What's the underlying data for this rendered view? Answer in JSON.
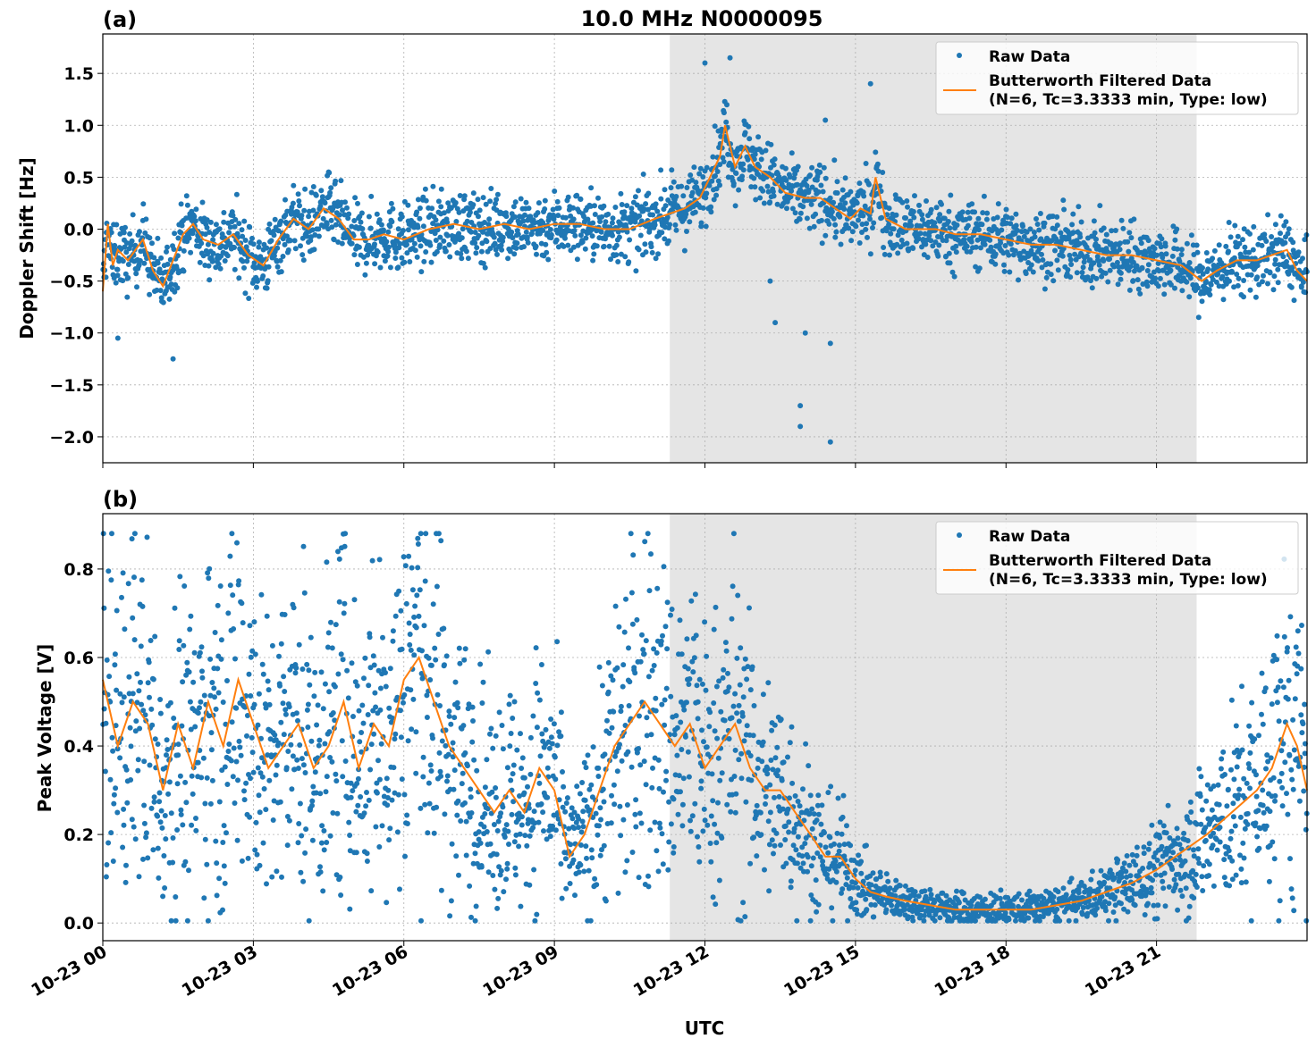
{
  "figure": {
    "title": "10.0 MHz N0000095",
    "xlabel": "UTC",
    "x_tick_labels": [
      "10-23 00",
      "10-23 03",
      "10-23 06",
      "10-23 09",
      "10-23 12",
      "10-23 15",
      "10-23 18",
      "10-23 21"
    ],
    "colors": {
      "raw": "#1f77b4",
      "filtered": "#ff7f0e",
      "shade": "#e5e5e5",
      "grid": "#b0b0b0"
    }
  },
  "legend": {
    "raw_label": "Raw Data",
    "filtered_label_line1": "Butterworth Filtered Data",
    "filtered_label_line2": "(N=6, Tc=3.3333 min, Type: low)"
  },
  "chart_data": [
    {
      "type": "scatter",
      "panel": "(a)",
      "ylabel": "Doppler Shift [Hz]",
      "x_unit": "hours UTC since 10-23 00:00",
      "xlim": [
        0,
        24
      ],
      "ylim": [
        -2.25,
        1.88
      ],
      "yticks": [
        1.5,
        1.0,
        0.5,
        0.0,
        -0.5,
        -1.0,
        -1.5,
        -2.0
      ],
      "ytick_labels": [
        "1.5",
        "1.0",
        "0.5",
        "0.0",
        "−0.5",
        "−1.0",
        "−1.5",
        "−2.0"
      ],
      "shaded_x_range": [
        11.3,
        21.8
      ],
      "grid": true,
      "legend_position": "top-right",
      "series": [
        {
          "name": "Butterworth Filtered Data",
          "x": [
            0,
            0.1,
            0.2,
            0.3,
            0.5,
            0.8,
            1.0,
            1.2,
            1.4,
            1.6,
            1.8,
            2.0,
            2.3,
            2.6,
            2.9,
            3.2,
            3.5,
            3.8,
            4.1,
            4.4,
            4.7,
            5.0,
            5.3,
            5.6,
            6.0,
            6.5,
            7.0,
            7.5,
            8.0,
            8.5,
            9.0,
            9.5,
            10.0,
            10.5,
            11.0,
            11.3,
            11.6,
            11.9,
            12.1,
            12.3,
            12.4,
            12.6,
            12.8,
            13.0,
            13.3,
            13.6,
            14.0,
            14.3,
            14.6,
            14.9,
            15.1,
            15.3,
            15.4,
            15.6,
            15.8,
            16.0,
            16.3,
            16.6,
            17.0,
            17.5,
            18.0,
            18.5,
            19.0,
            19.5,
            20.0,
            20.5,
            21.0,
            21.5,
            21.9,
            22.2,
            22.6,
            23.0,
            23.3,
            23.6,
            23.8,
            24.0
          ],
          "y": [
            -0.6,
            0.05,
            -0.35,
            -0.2,
            -0.3,
            -0.1,
            -0.4,
            -0.55,
            -0.3,
            -0.05,
            0.05,
            -0.1,
            -0.15,
            -0.05,
            -0.25,
            -0.35,
            -0.1,
            0.1,
            0.0,
            0.2,
            0.1,
            -0.1,
            -0.1,
            -0.05,
            -0.1,
            0.0,
            0.05,
            0.0,
            0.05,
            0.0,
            0.05,
            0.05,
            0.0,
            0.0,
            0.1,
            0.15,
            0.2,
            0.3,
            0.5,
            0.7,
            1.0,
            0.6,
            0.8,
            0.6,
            0.5,
            0.35,
            0.3,
            0.3,
            0.2,
            0.1,
            0.2,
            0.15,
            0.5,
            0.1,
            0.05,
            0.0,
            0.0,
            0.0,
            -0.05,
            -0.05,
            -0.1,
            -0.15,
            -0.15,
            -0.2,
            -0.25,
            -0.25,
            -0.3,
            -0.35,
            -0.5,
            -0.4,
            -0.3,
            -0.3,
            -0.25,
            -0.2,
            -0.4,
            -0.5
          ]
        },
        {
          "name": "Raw Data",
          "outliers": [
            [
              12.5,
              1.65
            ],
            [
              12.0,
              1.6
            ],
            [
              13.3,
              -0.5
            ],
            [
              13.4,
              -0.9
            ],
            [
              13.9,
              -1.7
            ],
            [
              13.9,
              -1.9
            ],
            [
              14.0,
              -1.0
            ],
            [
              14.5,
              -2.05
            ],
            [
              14.5,
              -1.1
            ],
            [
              15.3,
              1.4
            ],
            [
              1.4,
              -1.25
            ],
            [
              0.3,
              -1.05
            ],
            [
              4.5,
              0.55
            ],
            [
              14.4,
              1.05
            ]
          ]
        }
      ]
    },
    {
      "type": "scatter",
      "panel": "(b)",
      "ylabel": "Peak Voltage [V]",
      "x_unit": "hours UTC since 10-23 00:00",
      "xlim": [
        0,
        24
      ],
      "ylim": [
        -0.04,
        0.925
      ],
      "yticks": [
        0.0,
        0.2,
        0.4,
        0.6,
        0.8
      ],
      "ytick_labels": [
        "0.0",
        "0.2",
        "0.4",
        "0.6",
        "0.8"
      ],
      "shaded_x_range": [
        11.3,
        21.8
      ],
      "grid": true,
      "legend_position": "top-right",
      "series": [
        {
          "name": "Butterworth Filtered Data",
          "x": [
            0,
            0.3,
            0.6,
            0.9,
            1.2,
            1.5,
            1.8,
            2.1,
            2.4,
            2.7,
            3.0,
            3.3,
            3.6,
            3.9,
            4.2,
            4.5,
            4.8,
            5.1,
            5.4,
            5.7,
            6.0,
            6.3,
            6.6,
            6.9,
            7.2,
            7.5,
            7.8,
            8.1,
            8.4,
            8.7,
            9.0,
            9.3,
            9.6,
            9.9,
            10.2,
            10.5,
            10.8,
            11.1,
            11.4,
            11.7,
            12.0,
            12.3,
            12.6,
            12.9,
            13.2,
            13.5,
            13.8,
            14.1,
            14.4,
            14.7,
            15.0,
            15.3,
            15.6,
            16.0,
            16.5,
            17.0,
            17.5,
            18.0,
            18.5,
            19.0,
            19.5,
            20.0,
            20.5,
            21.0,
            21.5,
            22.0,
            22.5,
            23.0,
            23.3,
            23.6,
            23.8,
            24.0
          ],
          "y": [
            0.55,
            0.4,
            0.5,
            0.45,
            0.3,
            0.45,
            0.35,
            0.5,
            0.4,
            0.55,
            0.45,
            0.35,
            0.4,
            0.45,
            0.35,
            0.4,
            0.5,
            0.35,
            0.45,
            0.4,
            0.55,
            0.6,
            0.5,
            0.4,
            0.35,
            0.3,
            0.25,
            0.3,
            0.25,
            0.35,
            0.3,
            0.15,
            0.2,
            0.3,
            0.4,
            0.45,
            0.5,
            0.45,
            0.4,
            0.45,
            0.35,
            0.4,
            0.45,
            0.35,
            0.3,
            0.3,
            0.25,
            0.2,
            0.15,
            0.15,
            0.1,
            0.07,
            0.06,
            0.05,
            0.04,
            0.03,
            0.03,
            0.03,
            0.03,
            0.04,
            0.05,
            0.07,
            0.09,
            0.12,
            0.16,
            0.2,
            0.25,
            0.3,
            0.35,
            0.45,
            0.4,
            0.3
          ]
        },
        {
          "name": "Raw Data"
        }
      ]
    }
  ]
}
